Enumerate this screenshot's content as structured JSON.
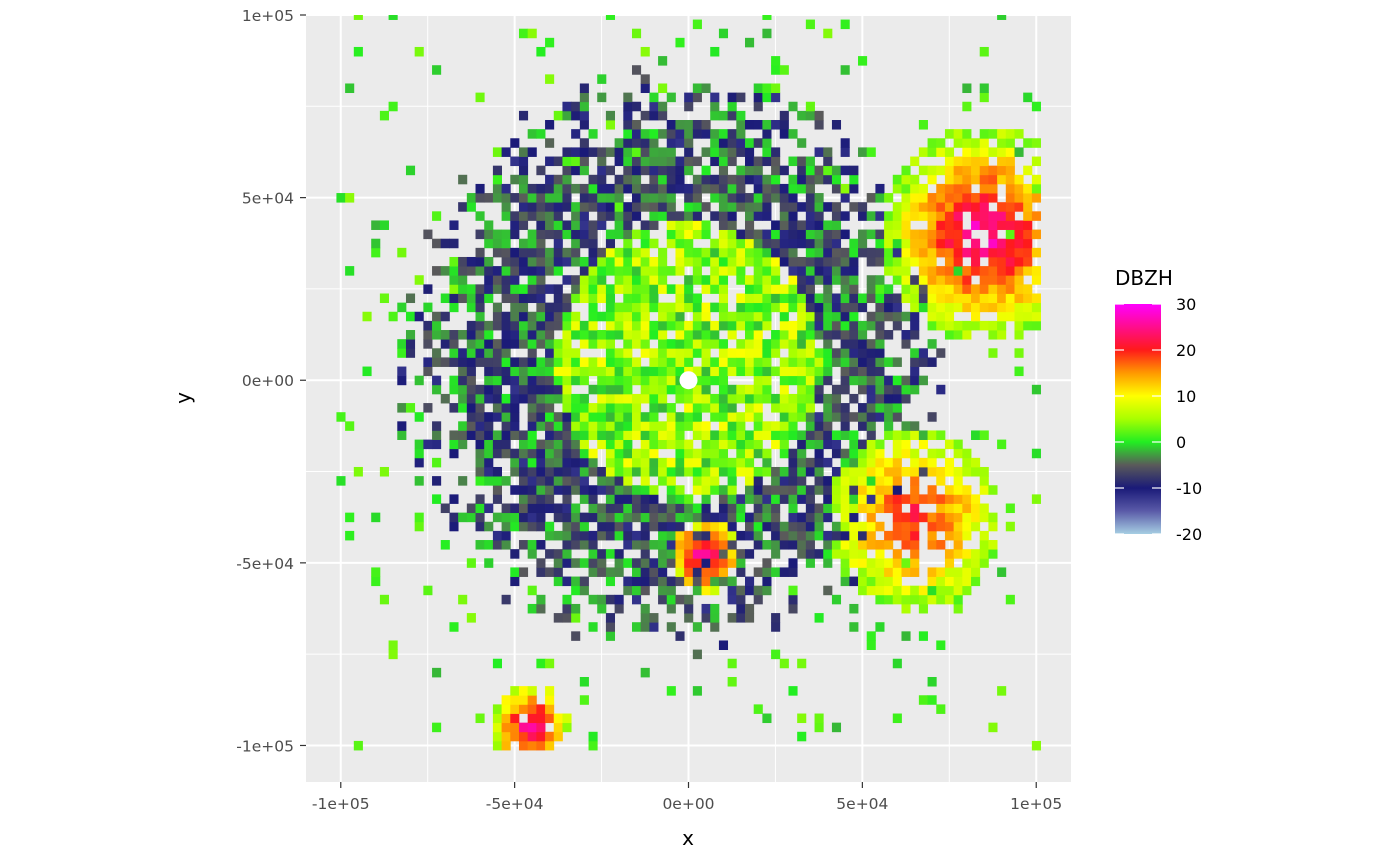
{
  "chart_data": {
    "type": "heatmap",
    "xlabel": "x",
    "ylabel": "y",
    "xlim": [
      -110000,
      110000
    ],
    "ylim": [
      -110000,
      100000
    ],
    "x_ticks": [
      {
        "value": -100000,
        "label": "-1e+05"
      },
      {
        "value": -50000,
        "label": "-5e+04"
      },
      {
        "value": 0,
        "label": "0e+00"
      },
      {
        "value": 50000,
        "label": "5e+04"
      },
      {
        "value": 100000,
        "label": "1e+05"
      }
    ],
    "y_ticks": [
      {
        "value": 100000,
        "label": "1e+05"
      },
      {
        "value": 50000,
        "label": "5e+04"
      },
      {
        "value": 0,
        "label": "0e+00"
      },
      {
        "value": -50000,
        "label": "-5e+04"
      },
      {
        "value": -100000,
        "label": "-1e+05"
      }
    ],
    "grid": true,
    "legend": {
      "title": "DBZH",
      "position": "right",
      "range": [
        -20,
        30
      ],
      "breaks": [
        {
          "value": 30,
          "label": "30"
        },
        {
          "value": 20,
          "label": "20"
        },
        {
          "value": 10,
          "label": "10"
        },
        {
          "value": 0,
          "label": "0"
        },
        {
          "value": -10,
          "label": "-10"
        },
        {
          "value": -20,
          "label": "-20"
        }
      ],
      "colors": [
        {
          "value": -20,
          "color": "#a6cee3"
        },
        {
          "value": -15,
          "color": "#5a5aa8"
        },
        {
          "value": -10,
          "color": "#1a1a78"
        },
        {
          "value": -5,
          "color": "#5a5a5a"
        },
        {
          "value": 0,
          "color": "#22ee22"
        },
        {
          "value": 5,
          "color": "#a8ff00"
        },
        {
          "value": 10,
          "color": "#ffff00"
        },
        {
          "value": 15,
          "color": "#ff9900"
        },
        {
          "value": 20,
          "color": "#ff1a1a"
        },
        {
          "value": 30,
          "color": "#ff00ff"
        }
      ]
    },
    "colors": {
      "panel": "#ebebeb",
      "gridline": "#ffffff"
    },
    "radar_center": [
      0,
      0
    ],
    "field_regions": [
      {
        "name": "inner-core",
        "x": 0,
        "y": 5000,
        "radius": 38000,
        "value_range": [
          -2,
          10
        ]
      },
      {
        "name": "outer-clutter",
        "x": -5000,
        "y": 5000,
        "radius": 70000,
        "value_range": [
          -12,
          0
        ]
      },
      {
        "name": "southwest-cells",
        "x": -45000,
        "y": -95000,
        "radius": 12000,
        "value_range": [
          5,
          28
        ]
      },
      {
        "name": "south-cell",
        "x": 5000,
        "y": -48000,
        "radius": 10000,
        "value_range": [
          8,
          28
        ]
      },
      {
        "name": "southeast-band",
        "x": 65000,
        "y": -38000,
        "radius": 25000,
        "value_range": [
          4,
          22
        ]
      },
      {
        "name": "northeast-cells",
        "x": 85000,
        "y": 40000,
        "radius": 30000,
        "value_range": [
          3,
          28
        ]
      }
    ]
  }
}
